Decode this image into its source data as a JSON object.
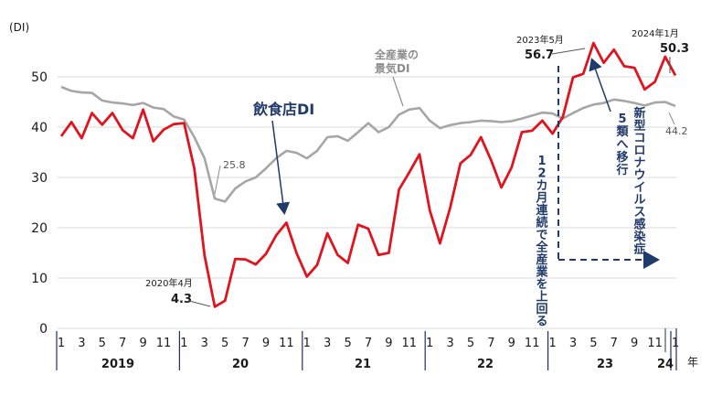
{
  "chart_data": {
    "type": "line",
    "unit_label": "(DI)",
    "year_suffix": "年",
    "ylim": [
      0,
      60
    ],
    "yticks": [
      0,
      10,
      20,
      30,
      40,
      50
    ],
    "month_labels": [
      "1",
      "3",
      "5",
      "7",
      "9",
      "11",
      "1",
      "3",
      "5",
      "7",
      "9",
      "11",
      "1",
      "3",
      "5",
      "7",
      "9",
      "11",
      "1",
      "3",
      "5",
      "7",
      "9",
      "11",
      "1",
      "3",
      "5",
      "7",
      "9",
      "11",
      "1"
    ],
    "year_labels": [
      "2019",
      "20",
      "21",
      "22",
      "23",
      "24"
    ],
    "series": [
      {
        "name": "飲食店DI",
        "color": "#e0141e",
        "values": [
          38.2,
          41.0,
          37.8,
          42.8,
          40.5,
          42.8,
          39.4,
          37.8,
          43.5,
          37.2,
          39.5,
          40.6,
          40.8,
          31.8,
          14.5,
          4.3,
          5.5,
          13.8,
          13.7,
          12.7,
          14.8,
          18.5,
          21.0,
          14.9,
          10.3,
          12.6,
          18.9,
          14.6,
          13.0,
          20.6,
          19.8,
          14.6,
          15.0,
          27.6,
          31.0,
          34.6,
          23.5,
          16.9,
          24.0,
          32.8,
          34.5,
          38.0,
          33.4,
          28.0,
          32.0,
          39.0,
          39.3,
          41.3,
          38.7,
          42.0,
          49.9,
          50.6,
          56.7,
          52.8,
          55.4,
          52.1,
          51.8,
          47.5,
          49.0,
          54.0,
          50.3
        ]
      },
      {
        "name": "全産業の景気DI",
        "color": "#a6a6a6",
        "values": [
          48.0,
          47.2,
          46.9,
          46.8,
          45.3,
          44.9,
          44.7,
          44.4,
          44.8,
          43.9,
          43.6,
          42.1,
          41.5,
          38.0,
          33.8,
          25.8,
          25.2,
          27.8,
          29.2,
          30.0,
          31.8,
          33.8,
          35.3,
          34.9,
          33.8,
          35.3,
          38.0,
          38.2,
          37.3,
          39.0,
          40.8,
          39.0,
          40.0,
          42.5,
          43.5,
          43.8,
          41.3,
          39.8,
          40.4,
          40.8,
          41.0,
          41.3,
          41.2,
          41.0,
          41.2,
          41.7,
          42.3,
          42.9,
          42.7,
          41.7,
          42.8,
          43.8,
          44.5,
          44.8,
          45.5,
          45.2,
          44.8,
          44.3,
          44.9,
          45.0,
          44.2
        ]
      }
    ],
    "annotations": {
      "restaurant_label": "飲食店DI",
      "allind_label_l1": "全産業の",
      "allind_label_l2": "景気DI",
      "low_allind": "25.8",
      "low_date": "2020年4月",
      "low_value": "4.3",
      "peak_date": "2023年5月",
      "peak_value": "56.7",
      "last_date": "2024年1月",
      "last_value": "50.3",
      "last_allind": "44.2",
      "streak_text": "12カ月連続で全産業を上回る",
      "covid_text_1": "新型コロナウイルス感染症",
      "covid_text_2": "5類へ移行"
    }
  }
}
